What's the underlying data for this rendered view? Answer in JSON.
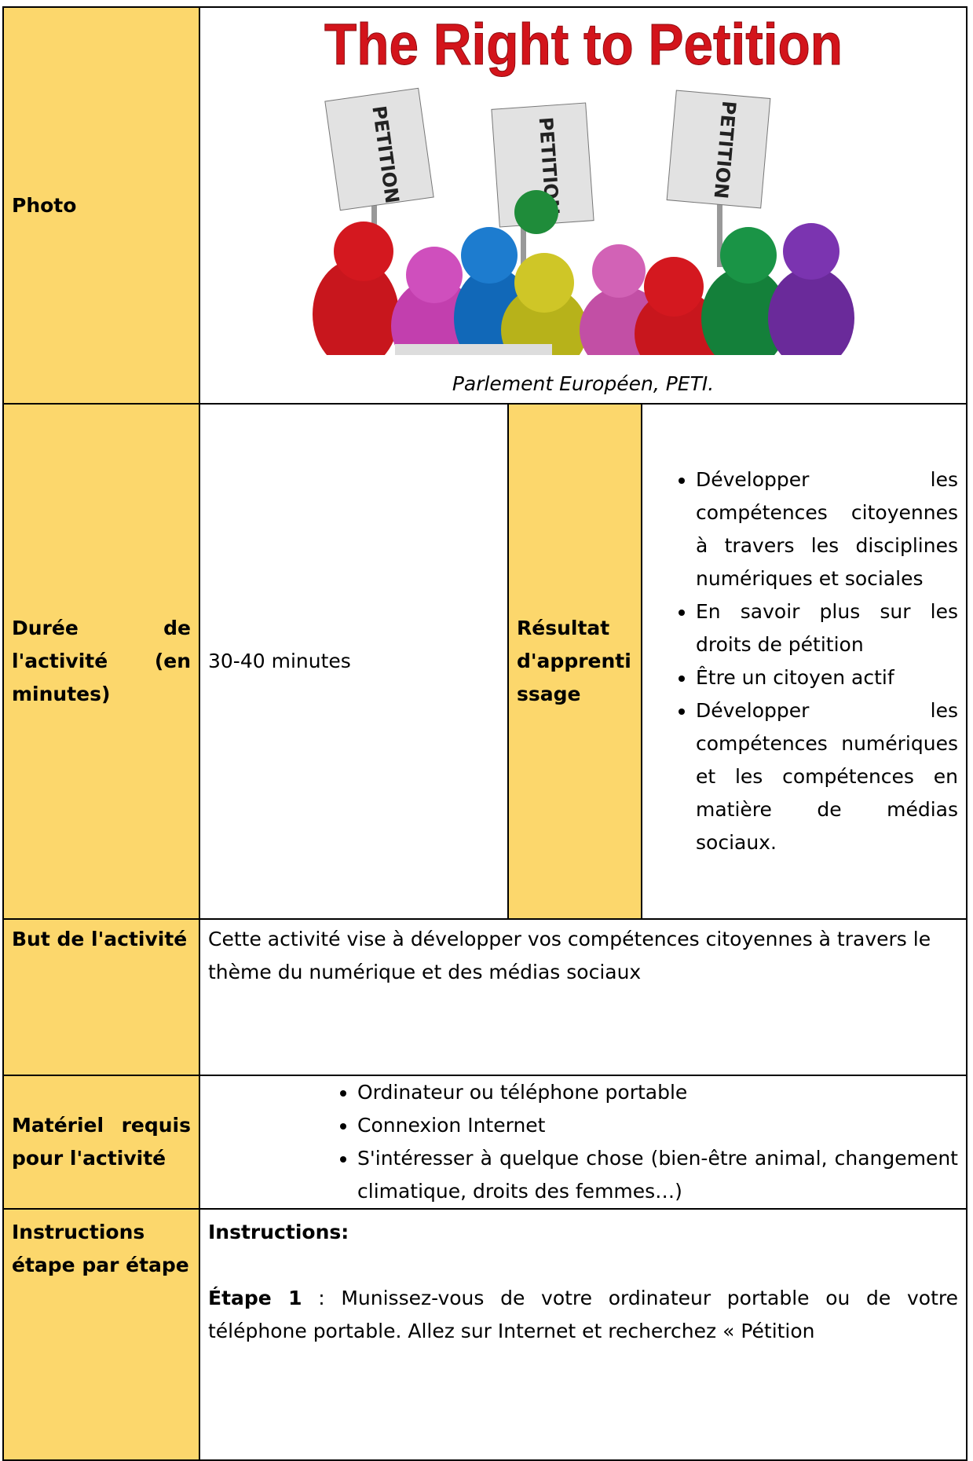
{
  "photo_row": {
    "label": "Photo",
    "image_title": "The Right to Petition",
    "sign_text": "PETITION",
    "caption": "Parlement Européen, PETI."
  },
  "duration_row": {
    "label": "Durée de l'activité (en minutes)",
    "value": "30-40 minutes",
    "outcome_label": "Résultat d'apprentissage",
    "outcomes": [
      "Développer les compétences citoyennes à travers les disciplines numériques et sociales",
      "En savoir plus sur les droits de pétition",
      "Être un citoyen actif",
      "Développer les compétences numériques et les compétences en matière de médias sociaux."
    ]
  },
  "goal_row": {
    "label": "But de l'activité",
    "text": "Cette activité vise à développer vos compétences citoyennes à travers le thème du numérique et des médias sociaux"
  },
  "materials_row": {
    "label": "Matériel requis pour l'activité",
    "items": [
      "Ordinateur ou téléphone portable",
      "Connexion Internet",
      "S'intéresser à quelque chose (bien-être animal, changement climatique, droits des femmes…)"
    ]
  },
  "instructions_row": {
    "label": "Instructions étape par étape",
    "heading": "Instructions:",
    "step_label": "Étape 1",
    "step_text": " : Munissez-vous de votre ordinateur portable ou de votre téléphone portable. Allez sur Internet et recherchez « Pétition"
  }
}
